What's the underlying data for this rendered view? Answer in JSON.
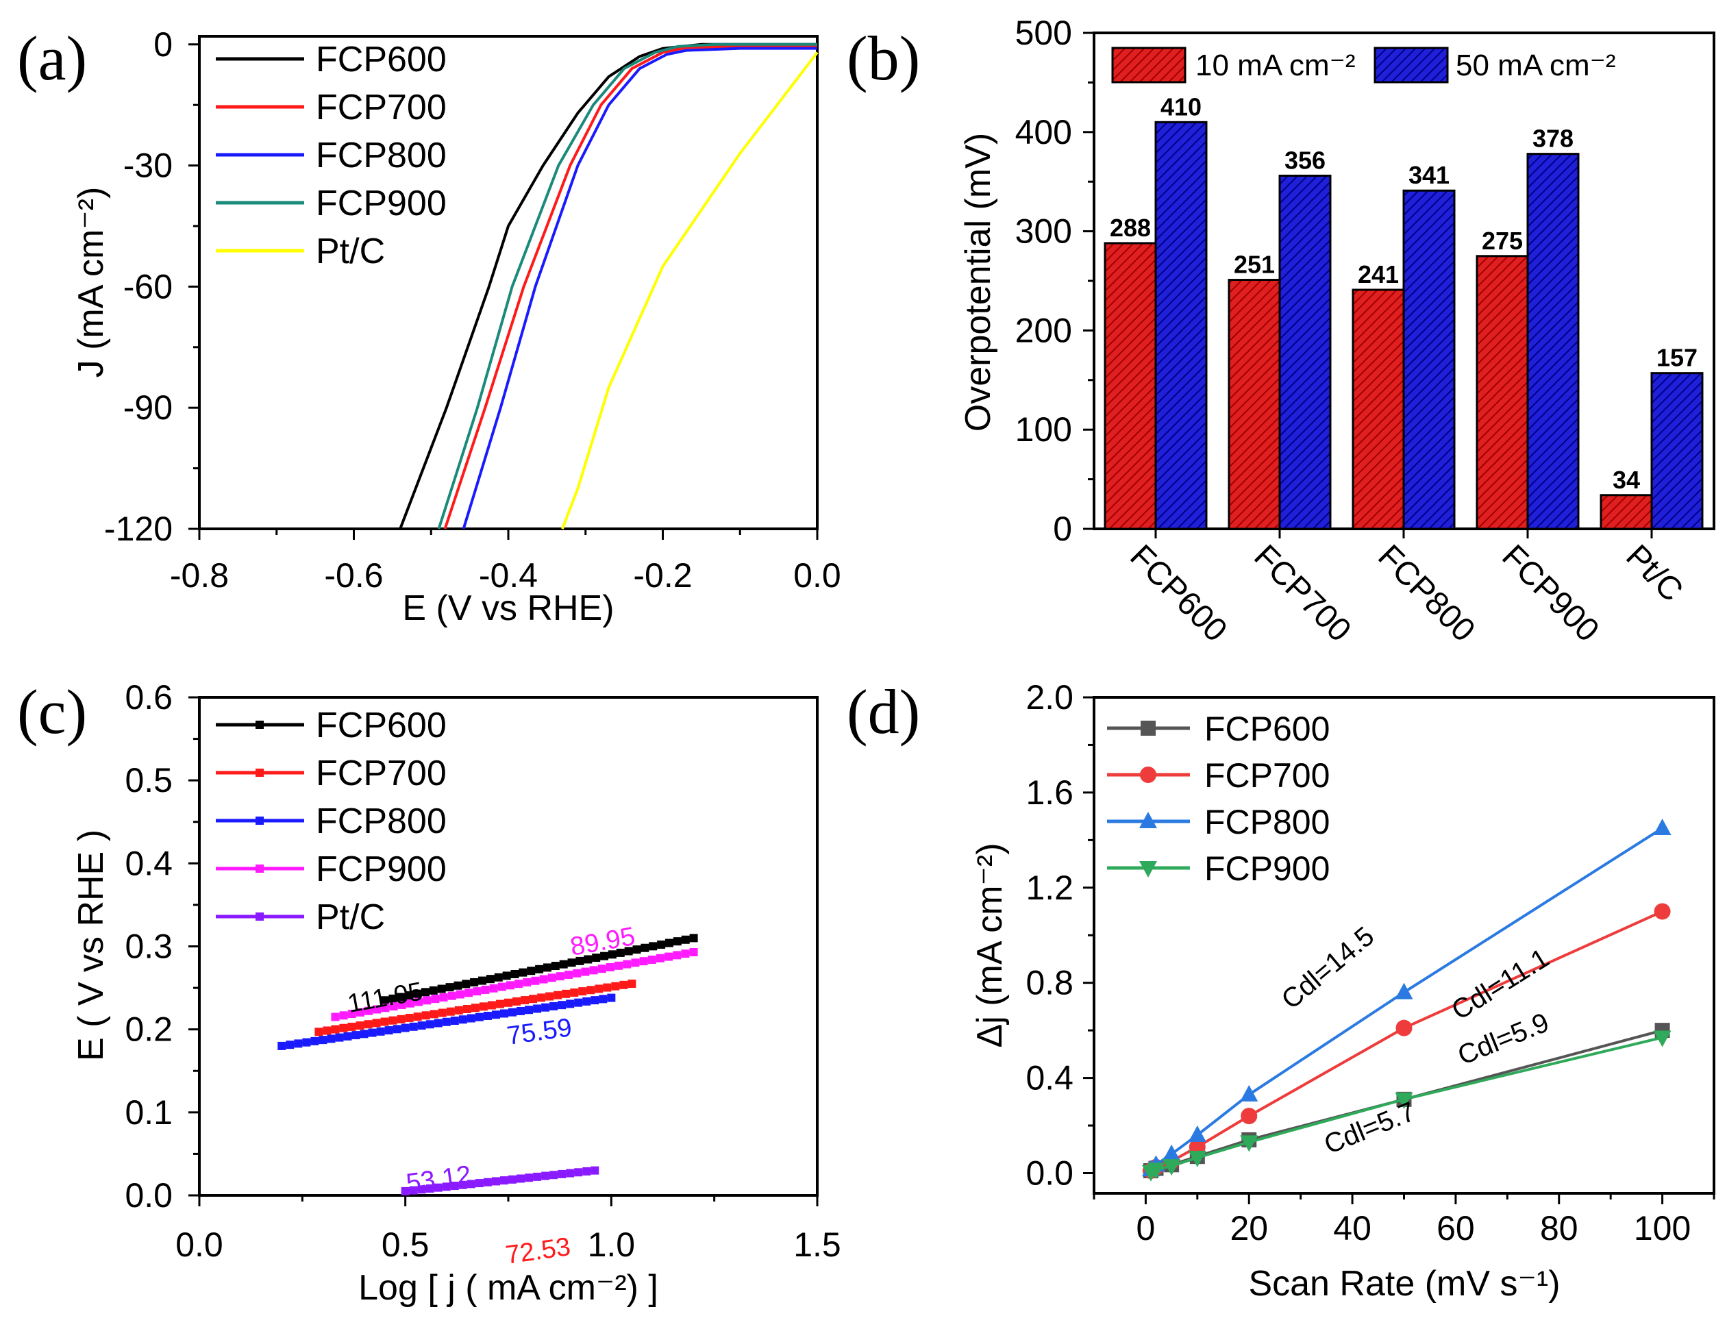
{
  "chart_data": [
    {
      "panel_label": "(a)",
      "type": "line",
      "xlabel": "E (V vs RHE)",
      "ylabel": "J (mA cm⁻²)",
      "xlim": [
        -0.8,
        0.0
      ],
      "ylim": [
        -120,
        2
      ],
      "xticks": [
        "-0.8",
        "-0.6",
        "-0.4",
        "-0.2",
        "0.0"
      ],
      "yticks": [
        "0",
        "-30",
        "-60",
        "-90",
        "-120"
      ],
      "legend_position": "top-left",
      "series": [
        {
          "name": "FCP600",
          "color": "#000000",
          "points": [
            [
              -0.54,
              -120
            ],
            [
              -0.48,
              -90
            ],
            [
              -0.425,
              -60
            ],
            [
              -0.4,
              -45
            ],
            [
              -0.355,
              -30
            ],
            [
              -0.31,
              -17
            ],
            [
              -0.27,
              -8
            ],
            [
              -0.23,
              -3
            ],
            [
              -0.2,
              -1
            ],
            [
              -0.15,
              0
            ],
            [
              0,
              0
            ]
          ]
        },
        {
          "name": "FCP700",
          "color": "#ff1a1a",
          "points": [
            [
              -0.482,
              -120
            ],
            [
              -0.43,
              -90
            ],
            [
              -0.38,
              -60
            ],
            [
              -0.32,
              -30
            ],
            [
              -0.28,
              -15
            ],
            [
              -0.24,
              -6
            ],
            [
              -0.2,
              -2
            ],
            [
              -0.17,
              -0.8
            ],
            [
              -0.1,
              -0.5
            ],
            [
              0,
              -0.5
            ]
          ]
        },
        {
          "name": "FCP800",
          "color": "#1a1aff",
          "points": [
            [
              -0.458,
              -120
            ],
            [
              -0.41,
              -90
            ],
            [
              -0.365,
              -60
            ],
            [
              -0.31,
              -30
            ],
            [
              -0.27,
              -15
            ],
            [
              -0.23,
              -6
            ],
            [
              -0.195,
              -2.5
            ],
            [
              -0.17,
              -1.5
            ],
            [
              -0.1,
              -1
            ],
            [
              0,
              -1
            ]
          ]
        },
        {
          "name": "FCP900",
          "color": "#1a8a7a",
          "points": [
            [
              -0.49,
              -120
            ],
            [
              -0.44,
              -90
            ],
            [
              -0.395,
              -60
            ],
            [
              -0.335,
              -30
            ],
            [
              -0.29,
              -15
            ],
            [
              -0.25,
              -6
            ],
            [
              -0.21,
              -2
            ],
            [
              -0.18,
              -0.5
            ],
            [
              -0.13,
              0
            ],
            [
              0,
              0
            ]
          ]
        },
        {
          "name": "Pt/C",
          "color": "#ffff00",
          "points": [
            [
              -0.33,
              -120
            ],
            [
              -0.31,
              -110
            ],
            [
              -0.27,
              -85
            ],
            [
              -0.2,
              -55
            ],
            [
              -0.1,
              -27
            ],
            [
              0,
              -2
            ]
          ]
        }
      ]
    },
    {
      "panel_label": "(b)",
      "type": "bar",
      "ylabel": "Overpotential (mV)",
      "ylim": [
        0,
        500
      ],
      "yticks": [
        "0",
        "100",
        "200",
        "300",
        "400",
        "500"
      ],
      "categories": [
        "FCP600",
        "FCP700",
        "FCP800",
        "FCP900",
        "Pt/C"
      ],
      "legend_position": "top",
      "series": [
        {
          "name": "10 mA cm⁻²",
          "color": "#e02020",
          "values": [
            288,
            251,
            241,
            275,
            34
          ]
        },
        {
          "name": "50 mA cm⁻²",
          "color": "#2020d8",
          "values": [
            410,
            356,
            341,
            378,
            157
          ]
        }
      ]
    },
    {
      "panel_label": "(c)",
      "type": "line",
      "xlabel": "Log [ j ( mA cm⁻²) ]",
      "ylabel": "E ( V vs RHE )",
      "xlim": [
        0,
        1.5
      ],
      "ylim": [
        0,
        0.6
      ],
      "xticks": [
        "0.0",
        "0.5",
        "1.0",
        "1.5"
      ],
      "yticks": [
        "0.0",
        "0.1",
        "0.2",
        "0.3",
        "0.4",
        "0.5",
        "0.6"
      ],
      "legend_position": "top-left",
      "series": [
        {
          "name": "FCP600",
          "color": "#000000",
          "points": [
            [
              0.45,
              0.235
            ],
            [
              1.2,
              0.31
            ]
          ],
          "annotation": "111.05"
        },
        {
          "name": "FCP700",
          "color": "#ff1a1a",
          "points": [
            [
              0.29,
              0.197
            ],
            [
              1.05,
              0.255
            ]
          ],
          "annotation": "72.53"
        },
        {
          "name": "FCP800",
          "color": "#1a1aff",
          "points": [
            [
              0.2,
              0.18
            ],
            [
              1.0,
              0.238
            ]
          ],
          "annotation": "75.59"
        },
        {
          "name": "FCP900",
          "color": "#ff1aff",
          "points": [
            [
              0.33,
              0.215
            ],
            [
              1.2,
              0.293
            ]
          ],
          "annotation": "89.95"
        },
        {
          "name": "Pt/C",
          "color": "#8a1aff",
          "points": [
            [
              0.5,
              0.005
            ],
            [
              0.96,
              0.03
            ]
          ],
          "annotation": "53.12"
        }
      ]
    },
    {
      "panel_label": "(d)",
      "type": "line",
      "xlabel": "Scan Rate (mV s⁻¹)",
      "ylabel": "Δj (mA cm⁻²)",
      "xlim": [
        -10,
        110
      ],
      "ylim": [
        -0.085,
        2.0
      ],
      "xticks": [
        "0",
        "20",
        "40",
        "60",
        "80",
        "100"
      ],
      "yticks": [
        "0.0",
        "0.4",
        "0.8",
        "1.2",
        "1.6",
        "2.0"
      ],
      "legend_position": "top-left",
      "x": [
        1,
        2,
        5,
        10,
        20,
        50,
        100
      ],
      "series": [
        {
          "name": "FCP600",
          "color": "#555555",
          "marker": "square",
          "values": [
            0.01,
            0.02,
            0.035,
            0.07,
            0.14,
            0.31,
            0.6
          ],
          "annotation": "Cdl=5.9"
        },
        {
          "name": "FCP700",
          "color": "#ee3b3b",
          "marker": "circle",
          "values": [
            0.01,
            0.025,
            0.05,
            0.11,
            0.24,
            0.61,
            1.1
          ],
          "annotation": "Cdl=11.1"
        },
        {
          "name": "FCP800",
          "color": "#2a7ae2",
          "marker": "triangle-up",
          "values": [
            0.015,
            0.035,
            0.08,
            0.16,
            0.33,
            0.76,
            1.45
          ],
          "annotation": "Cdl=14.5"
        },
        {
          "name": "FCP900",
          "color": "#2eaa5a",
          "marker": "triangle-down",
          "values": [
            0.005,
            0.015,
            0.03,
            0.065,
            0.13,
            0.31,
            0.57
          ],
          "annotation": "Cdl=5.7"
        }
      ]
    }
  ]
}
